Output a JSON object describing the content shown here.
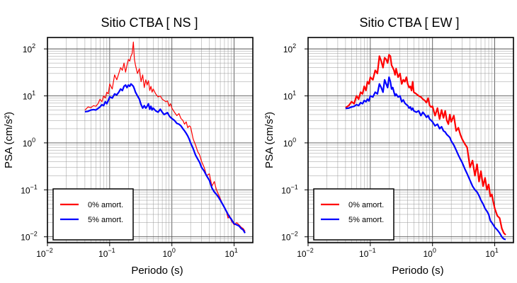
{
  "chart_data": [
    {
      "type": "line",
      "title": "Sitio CTBA [ NS ]",
      "xlabel": "Periodo (s)",
      "ylabel": "PSA (cm/s²)",
      "x_scale": "log",
      "y_scale": "log",
      "xlim": [
        0.01,
        20
      ],
      "ylim": [
        0.0075,
        175
      ],
      "grid": true,
      "legend_position": "lower-left",
      "x_ticks": [
        {
          "label": "10",
          "exp": "−2"
        },
        {
          "label": "10",
          "exp": "−1"
        },
        {
          "label": "10",
          "exp": "0"
        },
        {
          "label": "10",
          "exp": "1"
        }
      ],
      "y_ticks": [
        {
          "label": "10",
          "exp": "−2"
        },
        {
          "label": "10",
          "exp": "−1"
        },
        {
          "label": "10",
          "exp": "0"
        },
        {
          "label": "10",
          "exp": "1"
        },
        {
          "label": "10",
          "exp": "2"
        }
      ],
      "series": [
        {
          "name": "0% amort.",
          "color": "#ff0000",
          "stroke": 1.2,
          "x": [
            0.04,
            0.045,
            0.05,
            0.055,
            0.06,
            0.065,
            0.07,
            0.075,
            0.08,
            0.085,
            0.09,
            0.095,
            0.1,
            0.11,
            0.12,
            0.13,
            0.14,
            0.15,
            0.16,
            0.17,
            0.18,
            0.19,
            0.2,
            0.21,
            0.22,
            0.23,
            0.24,
            0.25,
            0.26,
            0.28,
            0.3,
            0.32,
            0.34,
            0.36,
            0.38,
            0.4,
            0.42,
            0.44,
            0.46,
            0.48,
            0.5,
            0.55,
            0.6,
            0.65,
            0.7,
            0.75,
            0.8,
            0.85,
            0.9,
            0.95,
            1.0,
            1.1,
            1.2,
            1.3,
            1.4,
            1.5,
            1.6,
            1.7,
            1.8,
            1.9,
            2.0,
            2.2,
            2.4,
            2.6,
            2.8,
            3.0,
            3.3,
            3.6,
            4.0,
            4.4,
            4.8,
            5.2,
            5.6,
            6.0,
            6.5,
            7.0,
            7.5,
            8.0,
            8.5,
            9.0,
            9.5,
            10,
            11,
            12,
            13,
            14,
            15
          ],
          "y": [
            5.0,
            5.8,
            5.6,
            6.2,
            6.0,
            6.8,
            8.5,
            7.5,
            10,
            9.0,
            12,
            11,
            18,
            14,
            28,
            22,
            30,
            40,
            35,
            50,
            32,
            45,
            60,
            55,
            70,
            80,
            140,
            60,
            45,
            30,
            38,
            20,
            28,
            15,
            22,
            17,
            21,
            13,
            16,
            12,
            14,
            11,
            9.5,
            10,
            8.5,
            8,
            7.5,
            7.8,
            6.0,
            6.8,
            5.5,
            4.5,
            3.8,
            4.2,
            3.3,
            3.0,
            2.5,
            2.8,
            2.1,
            2.3,
            2.2,
            1.2,
            0.9,
            0.65,
            0.55,
            0.4,
            0.3,
            0.2,
            0.22,
            0.12,
            0.15,
            0.1,
            0.08,
            0.065,
            0.05,
            0.042,
            0.035,
            0.025,
            0.028,
            0.022,
            0.02,
            0.018,
            0.02,
            0.018,
            0.016,
            0.015,
            0.013
          ]
        },
        {
          "name": "5% amort.",
          "color": "#0000ff",
          "stroke": 2.2,
          "x": [
            0.04,
            0.045,
            0.05,
            0.055,
            0.06,
            0.065,
            0.07,
            0.075,
            0.08,
            0.085,
            0.09,
            0.095,
            0.1,
            0.11,
            0.12,
            0.13,
            0.14,
            0.15,
            0.16,
            0.17,
            0.18,
            0.19,
            0.2,
            0.21,
            0.22,
            0.23,
            0.24,
            0.25,
            0.26,
            0.28,
            0.3,
            0.32,
            0.34,
            0.36,
            0.38,
            0.4,
            0.42,
            0.44,
            0.46,
            0.48,
            0.5,
            0.55,
            0.6,
            0.65,
            0.7,
            0.75,
            0.8,
            0.85,
            0.9,
            0.95,
            1.0,
            1.1,
            1.2,
            1.3,
            1.4,
            1.5,
            1.6,
            1.7,
            1.8,
            1.9,
            2.0,
            2.2,
            2.4,
            2.6,
            2.8,
            3.0,
            3.3,
            3.6,
            4.0,
            4.4,
            4.8,
            5.2,
            5.6,
            6.0,
            6.5,
            7.0,
            7.5,
            8.0,
            8.5,
            9.0,
            9.5,
            10,
            11,
            12,
            13,
            14,
            15
          ],
          "y": [
            4.6,
            4.7,
            5.0,
            5.1,
            5.0,
            5.4,
            5.8,
            6.5,
            6.2,
            7.5,
            6.8,
            8.0,
            9.5,
            9.0,
            11,
            10.5,
            12,
            14,
            13,
            16,
            17,
            15,
            17,
            16,
            18,
            17,
            16,
            14,
            12,
            10,
            8.5,
            6.5,
            5.5,
            6.2,
            5.5,
            6.0,
            6.8,
            5.2,
            6.0,
            5.0,
            5.5,
            4.8,
            4.5,
            5.2,
            4.5,
            4.0,
            4.2,
            4.4,
            3.8,
            3.5,
            3.3,
            3.0,
            2.6,
            2.5,
            2.3,
            2.0,
            1.8,
            1.6,
            1.4,
            1.2,
            1.0,
            0.75,
            0.55,
            0.45,
            0.38,
            0.3,
            0.25,
            0.2,
            0.16,
            0.11,
            0.09,
            0.08,
            0.07,
            0.06,
            0.05,
            0.042,
            0.035,
            0.03,
            0.026,
            0.024,
            0.021,
            0.019,
            0.018,
            0.017,
            0.015,
            0.014,
            0.012
          ]
        }
      ]
    },
    {
      "type": "line",
      "title": "Sitio CTBA [ EW ]",
      "xlabel": "Periodo (s)",
      "ylabel": "PSA (cm/s²)",
      "x_scale": "log",
      "y_scale": "log",
      "xlim": [
        0.01,
        20
      ],
      "ylim": [
        0.0075,
        175
      ],
      "grid": true,
      "legend_position": "lower-left",
      "x_ticks": [
        {
          "label": "10",
          "exp": "−2"
        },
        {
          "label": "10",
          "exp": "−1"
        },
        {
          "label": "10",
          "exp": "0"
        },
        {
          "label": "10",
          "exp": "1"
        }
      ],
      "y_ticks": [
        {
          "label": "10",
          "exp": "−2"
        },
        {
          "label": "10",
          "exp": "−1"
        },
        {
          "label": "10",
          "exp": "0"
        },
        {
          "label": "10",
          "exp": "1"
        },
        {
          "label": "10",
          "exp": "2"
        }
      ],
      "series": [
        {
          "name": "0% amort.",
          "color": "#ff0000",
          "stroke": 2.2,
          "x": [
            0.04,
            0.045,
            0.05,
            0.055,
            0.06,
            0.065,
            0.07,
            0.075,
            0.08,
            0.085,
            0.09,
            0.095,
            0.1,
            0.11,
            0.12,
            0.13,
            0.14,
            0.15,
            0.16,
            0.17,
            0.18,
            0.19,
            0.2,
            0.21,
            0.22,
            0.23,
            0.24,
            0.25,
            0.26,
            0.28,
            0.3,
            0.32,
            0.34,
            0.36,
            0.38,
            0.4,
            0.42,
            0.44,
            0.46,
            0.48,
            0.5,
            0.55,
            0.6,
            0.65,
            0.7,
            0.75,
            0.8,
            0.85,
            0.9,
            0.95,
            1.0,
            1.1,
            1.2,
            1.3,
            1.4,
            1.5,
            1.6,
            1.7,
            1.8,
            1.9,
            2.0,
            2.2,
            2.4,
            2.6,
            2.8,
            3.0,
            3.3,
            3.6,
            4.0,
            4.4,
            4.8,
            5.2,
            5.6,
            6.0,
            6.5,
            7.0,
            7.5,
            8.0,
            8.5,
            9.0,
            9.5,
            10,
            11,
            12,
            13,
            14,
            15
          ],
          "y": [
            5.6,
            6.2,
            7.5,
            6.8,
            10,
            8.5,
            12,
            11,
            16,
            13,
            20,
            18,
            25,
            22,
            35,
            30,
            70,
            55,
            40,
            65,
            60,
            50,
            75,
            70,
            45,
            40,
            35,
            28,
            38,
            25,
            30,
            18,
            22,
            20,
            25,
            18,
            15,
            16,
            13,
            20,
            12,
            11,
            10,
            9.5,
            8.5,
            8.0,
            7.2,
            9.0,
            6.2,
            5.8,
            6.0,
            3.8,
            5.5,
            3.2,
            5.0,
            3.4,
            4.8,
            3.0,
            2.5,
            4.0,
            2.8,
            3.8,
            1.8,
            2.1,
            1.5,
            1.2,
            0.95,
            0.8,
            0.3,
            0.42,
            0.2,
            0.35,
            0.15,
            0.25,
            0.12,
            0.18,
            0.1,
            0.13,
            0.072,
            0.08,
            0.055,
            0.04,
            0.028,
            0.025,
            0.015,
            0.012,
            0.011
          ]
        },
        {
          "name": "5% amort.",
          "color": "#0000ff",
          "stroke": 2.2,
          "x": [
            0.04,
            0.045,
            0.05,
            0.055,
            0.06,
            0.065,
            0.07,
            0.075,
            0.08,
            0.085,
            0.09,
            0.095,
            0.1,
            0.11,
            0.12,
            0.13,
            0.14,
            0.15,
            0.16,
            0.17,
            0.18,
            0.19,
            0.2,
            0.21,
            0.22,
            0.23,
            0.24,
            0.25,
            0.26,
            0.28,
            0.3,
            0.32,
            0.34,
            0.36,
            0.38,
            0.4,
            0.42,
            0.44,
            0.46,
            0.48,
            0.5,
            0.55,
            0.6,
            0.65,
            0.7,
            0.75,
            0.8,
            0.85,
            0.9,
            0.95,
            1.0,
            1.1,
            1.2,
            1.3,
            1.4,
            1.5,
            1.6,
            1.7,
            1.8,
            1.9,
            2.0,
            2.2,
            2.4,
            2.6,
            2.8,
            3.0,
            3.3,
            3.6,
            4.0,
            4.4,
            4.8,
            5.2,
            5.6,
            6.0,
            6.5,
            7.0,
            7.5,
            8.0,
            8.5,
            9.0,
            9.5,
            10,
            11,
            12,
            13,
            14,
            15
          ],
          "y": [
            5.4,
            5.5,
            5.8,
            6.0,
            6.5,
            6.2,
            7.2,
            6.8,
            8.0,
            7.5,
            8.5,
            7.8,
            10,
            9.5,
            12,
            11,
            18,
            15,
            12,
            22,
            18,
            15,
            25,
            20,
            14,
            15,
            12,
            10,
            11,
            9.5,
            10,
            7.5,
            8.2,
            7.0,
            6.5,
            6.2,
            5.5,
            5.8,
            5.0,
            5.5,
            4.8,
            4.5,
            4.8,
            3.8,
            4.5,
            4.0,
            3.5,
            3.8,
            3.2,
            3.0,
            2.8,
            2.3,
            2.5,
            2.0,
            2.2,
            1.8,
            1.7,
            1.5,
            1.4,
            1.3,
            1.1,
            0.9,
            0.7,
            0.55,
            0.45,
            0.38,
            0.28,
            0.22,
            0.16,
            0.12,
            0.1,
            0.09,
            0.075,
            0.06,
            0.05,
            0.04,
            0.035,
            0.03,
            0.022,
            0.02,
            0.018,
            0.016,
            0.014,
            0.012,
            0.01,
            0.009,
            0.0088
          ]
        }
      ]
    }
  ]
}
